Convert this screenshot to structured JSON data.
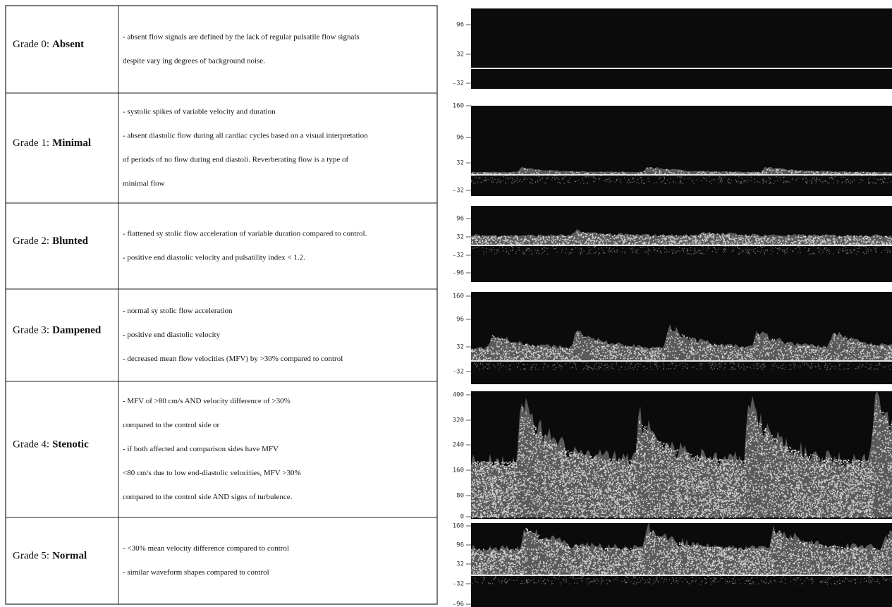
{
  "rows": [
    {
      "label": "Grade 0:",
      "name": "Absent",
      "lines": [
        "- absent flow signals are defined by the lack of regular pulsatile flow signals",
        "despite vary ing degrees of background noise."
      ],
      "scale": [
        "96",
        "32",
        "-32"
      ]
    },
    {
      "label": "Grade 1:",
      "name": "Minimal",
      "lines": [
        "- systolic spikes of variable velocity and duration",
        "- absent diastolic flow during all cardiac cycles based on a visual interpretation",
        "of periods of no flow during end diastoli. Reverberating flow is a type of",
        "minimal flow"
      ],
      "scale": [
        "160",
        "96",
        "32",
        "-32"
      ]
    },
    {
      "label": "Grade 2:",
      "name": "Blunted",
      "lines": [
        "- flattened sy stolic flow acceleration of variable duration compared to control.",
        "- positive end diastolic velocity and pulsatility index < 1.2."
      ],
      "scale": [
        "96",
        "32",
        "-32",
        "-96"
      ]
    },
    {
      "label": "Grade 3:",
      "name": "Dampened",
      "lines": [
        "- normal sy stolic flow acceleration",
        "- positive end diastolic velocity",
        "- decreased mean flow velocities (MFV) by >30% compared to control"
      ],
      "scale": [
        "160",
        "96",
        "32",
        "-32"
      ]
    },
    {
      "label": "Grade 4:",
      "name": "Stenotic",
      "lines": [
        "- MFV of >80 cm/s AND velocity difference of >30%",
        "compared to the control side or",
        "- if  both affected and comparison sides have MFV",
        "<80 cm/s due to low end-diastolic velocities, MFV >30%",
        "compared to the control side  AND signs of turbulence."
      ],
      "scale": [
        "400",
        "320",
        "240",
        "160",
        "80",
        "0"
      ]
    },
    {
      "label": "Grade 5:",
      "name": "Normal",
      "lines": [
        "- <30% mean velocity difference compared to control",
        "- similar waveform shapes compared to control"
      ],
      "scale": [
        "160",
        "96",
        "32",
        "-32",
        "-96"
      ]
    }
  ]
}
